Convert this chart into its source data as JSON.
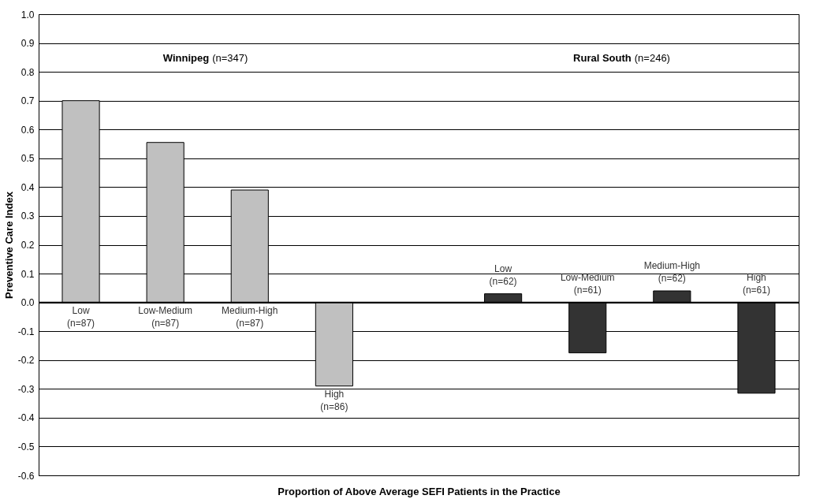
{
  "chart_data": {
    "type": "bar",
    "xlabel": "Proportion of Above Average SEFI Patients in the Practice",
    "ylabel": "Preventive Care Index",
    "categories": [
      "Low (n=87)",
      "Low-Medium (n=87)",
      "Medium-High (n=87)",
      "High (n=86)",
      null,
      "Low (n=62)",
      "Low-Medium (n=61)",
      "Medium-High (n=62)",
      "High (n=61)"
    ],
    "series": [
      {
        "name": "Winnipeg (n=347)",
        "color": "#c0c0c0",
        "values": [
          0.7,
          0.555,
          0.39,
          -0.29,
          null,
          null,
          null,
          null,
          null
        ]
      },
      {
        "name": "Rural South (n=246)",
        "color": "#333333",
        "values": [
          null,
          null,
          null,
          null,
          null,
          0.03,
          -0.175,
          0.04,
          -0.315
        ]
      }
    ],
    "ylim": [
      -0.6,
      1.0
    ],
    "yticks": [
      -0.6,
      -0.5,
      -0.4,
      -0.3,
      -0.2,
      -0.1,
      {
        "value": 0,
        "label": "0.0"
      },
      0.1,
      0.2,
      0.3,
      0.4,
      0.5,
      0.6,
      0.7,
      0.8,
      0.9,
      {
        "value": 1,
        "label": "1.0"
      }
    ],
    "grid": "y",
    "legend": false
  }
}
